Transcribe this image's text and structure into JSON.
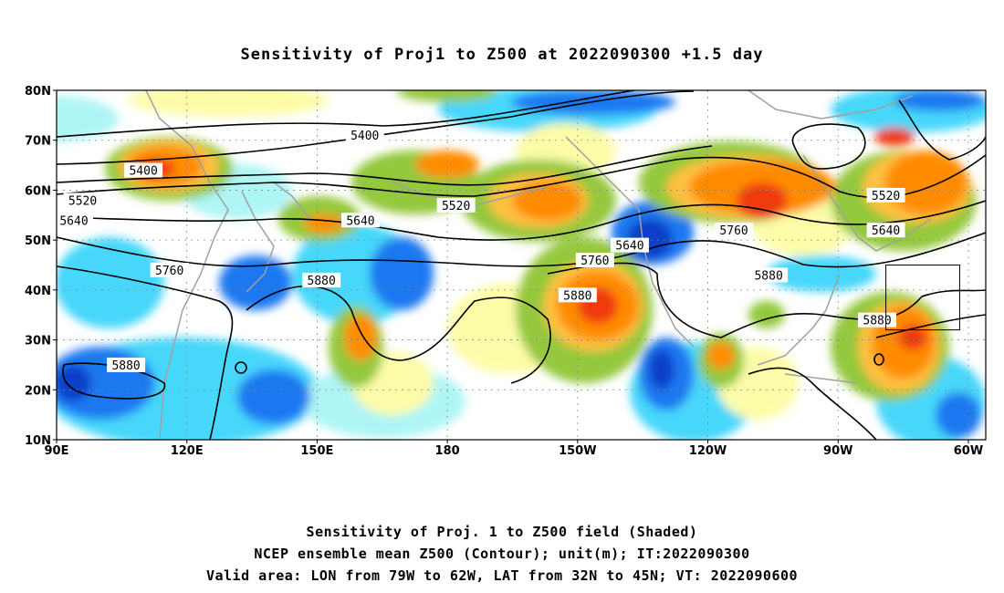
{
  "title": "Sensitivity of Proj1 to Z500 at 2022090300 +1.5 day",
  "captions": [
    "Sensitivity of Proj. 1 to Z500 field (Shaded)",
    "NCEP ensemble mean Z500 (Contour); unit(m); IT:2022090300",
    "Valid area: LON from 79W to 62W, LAT from 32N to 45N; VT: 2022090600"
  ],
  "map": {
    "lon_range": [
      90,
      304
    ],
    "lat_range": [
      10,
      80
    ],
    "lon_ticks": [
      "90E",
      "120E",
      "150E",
      "180",
      "150W",
      "120W",
      "90W",
      "60W"
    ],
    "lat_ticks": [
      "80N",
      "70N",
      "60N",
      "50N",
      "40N",
      "30N",
      "20N",
      "10N"
    ],
    "valid_area_box": {
      "lon_range": [
        281,
        298
      ],
      "lat_range": [
        32,
        45
      ]
    },
    "colors": {
      "red": "#f03a10",
      "orange": "#ff8c00",
      "light_orange": "#ffc040",
      "green": "#94c83c",
      "yellow": "#fcfca8",
      "light_cyan": "#aef5f5",
      "cyan": "#46d7fa",
      "blue": "#1e78f0",
      "dark_blue": "#1040c8",
      "coast": "#a0a0a0",
      "contour": "#000000"
    },
    "contour_labels": [
      {
        "text": "5400",
        "lon": 110,
        "lat": 64
      },
      {
        "text": "5400",
        "lon": 161,
        "lat": 71
      },
      {
        "text": "5520",
        "lon": 96,
        "lat": 58
      },
      {
        "text": "5520",
        "lon": 182,
        "lat": 57
      },
      {
        "text": "5520",
        "lon": 281,
        "lat": 59
      },
      {
        "text": "5640",
        "lon": 94,
        "lat": 54
      },
      {
        "text": "5640",
        "lon": 160,
        "lat": 54
      },
      {
        "text": "5640",
        "lon": 222,
        "lat": 49
      },
      {
        "text": "5640",
        "lon": 281,
        "lat": 52
      },
      {
        "text": "5760",
        "lon": 116,
        "lat": 44
      },
      {
        "text": "5760",
        "lon": 214,
        "lat": 46
      },
      {
        "text": "5760",
        "lon": 246,
        "lat": 52
      },
      {
        "text": "5880",
        "lon": 151,
        "lat": 42
      },
      {
        "text": "5880",
        "lon": 210,
        "lat": 39
      },
      {
        "text": "5880",
        "lon": 254,
        "lat": 43
      },
      {
        "text": "5880",
        "lon": 279,
        "lat": 34
      },
      {
        "text": "5880",
        "lon": 106,
        "lat": 25
      }
    ]
  }
}
